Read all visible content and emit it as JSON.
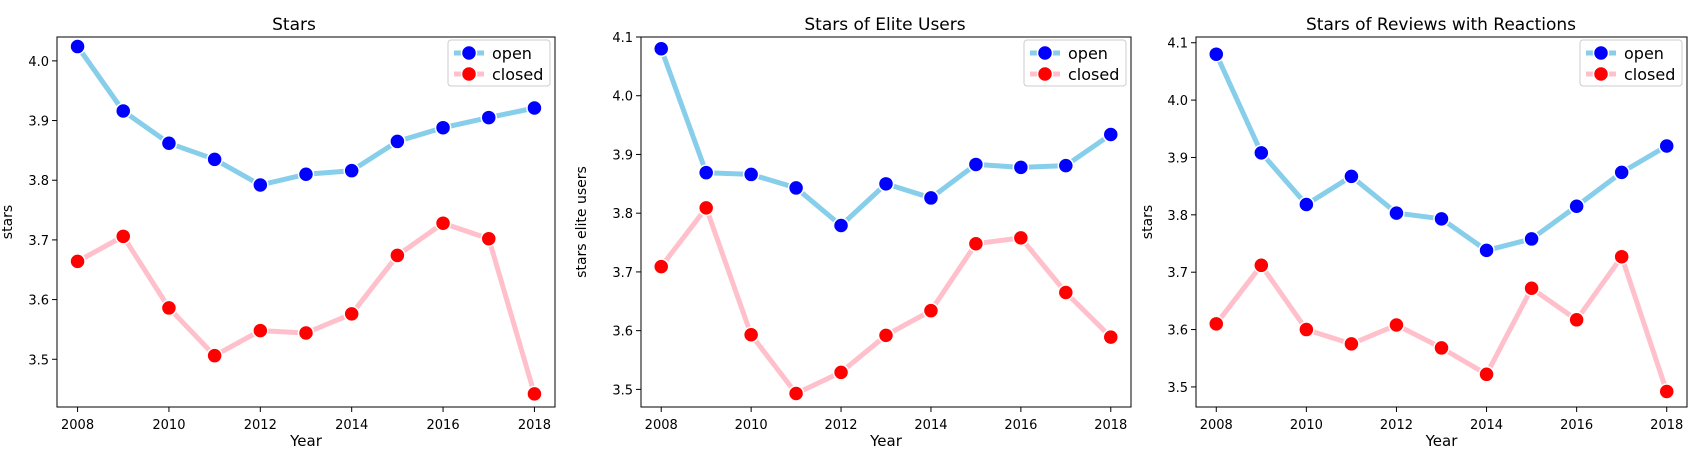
{
  "figure": {
    "colors": {
      "open_line": "#87ceeb",
      "open_marker": "#0000ff",
      "closed_line": "#ffc0cb",
      "closed_marker": "#ff0000"
    }
  },
  "chart_data": [
    {
      "type": "line",
      "title": "Stars",
      "xlabel": "Year",
      "ylabel": "stars",
      "x": [
        2008,
        2009,
        2010,
        2011,
        2012,
        2013,
        2014,
        2015,
        2016,
        2017,
        2018
      ],
      "xticks": [
        2008,
        2010,
        2012,
        2014,
        2016,
        2018
      ],
      "ylim": [
        3.42,
        4.04
      ],
      "yticks": [
        3.5,
        3.6,
        3.7,
        3.8,
        3.9,
        4.0
      ],
      "series": [
        {
          "name": "open",
          "values": [
            4.024,
            3.916,
            3.862,
            3.835,
            3.792,
            3.81,
            3.816,
            3.865,
            3.888,
            3.905,
            3.921
          ]
        },
        {
          "name": "closed",
          "values": [
            3.664,
            3.706,
            3.586,
            3.506,
            3.548,
            3.544,
            3.576,
            3.674,
            3.728,
            3.702,
            3.442
          ]
        }
      ],
      "legend": "top-right"
    },
    {
      "type": "line",
      "title": "Stars of Elite Users",
      "xlabel": "Year",
      "ylabel": "stars elite users",
      "x": [
        2008,
        2009,
        2010,
        2011,
        2012,
        2013,
        2014,
        2015,
        2016,
        2017,
        2018
      ],
      "xticks": [
        2008,
        2010,
        2012,
        2014,
        2016,
        2018
      ],
      "ylim": [
        3.47,
        4.1
      ],
      "yticks": [
        3.5,
        3.6,
        3.7,
        3.8,
        3.9,
        4.0,
        4.1
      ],
      "series": [
        {
          "name": "open",
          "values": [
            4.08,
            3.869,
            3.866,
            3.843,
            3.779,
            3.85,
            3.826,
            3.883,
            3.878,
            3.881,
            3.934
          ]
        },
        {
          "name": "closed",
          "values": [
            3.709,
            3.809,
            3.593,
            3.493,
            3.529,
            3.592,
            3.634,
            3.748,
            3.758,
            3.665,
            3.589
          ]
        }
      ],
      "legend": "top-right"
    },
    {
      "type": "line",
      "title": "Stars of Reviews with Reactions",
      "xlabel": "Year",
      "ylabel": "stars",
      "x": [
        2008,
        2009,
        2010,
        2011,
        2012,
        2013,
        2014,
        2015,
        2016,
        2017,
        2018
      ],
      "xticks": [
        2008,
        2010,
        2012,
        2014,
        2016,
        2018
      ],
      "ylim": [
        3.465,
        4.11
      ],
      "yticks": [
        3.5,
        3.6,
        3.7,
        3.8,
        3.9,
        4.0,
        4.1
      ],
      "series": [
        {
          "name": "open",
          "values": [
            4.08,
            3.908,
            3.818,
            3.867,
            3.803,
            3.793,
            3.738,
            3.758,
            3.815,
            3.874,
            3.92
          ]
        },
        {
          "name": "closed",
          "values": [
            3.61,
            3.712,
            3.6,
            3.575,
            3.608,
            3.568,
            3.522,
            3.672,
            3.617,
            3.727,
            3.492
          ]
        }
      ],
      "legend": "top-right"
    }
  ]
}
